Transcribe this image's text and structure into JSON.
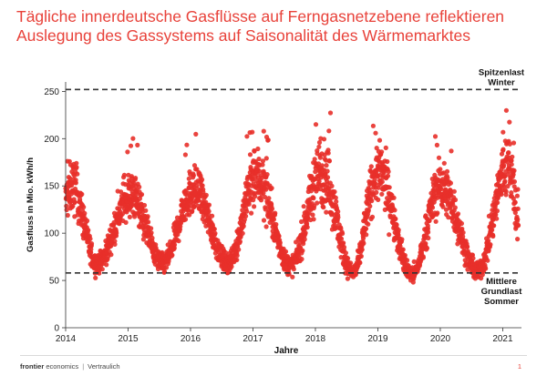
{
  "title_line1": "Tägliche innerdeutsche Gasflüsse auf Ferngasnetzebene reflektieren",
  "title_line2": "Auslegung des Gassystems auf Saisonalität des Wärmemarktes",
  "footer": {
    "brand_bold": "frontier",
    "brand_rest": " economics",
    "separator": "|",
    "confidentiality": "Vertraulich",
    "page_number": "1"
  },
  "chart_data": {
    "type": "scatter",
    "xlabel": "Jahre",
    "ylabel": "Gasfluss in Mio. kWh/h",
    "xlim": [
      2014.0,
      2021.3
    ],
    "ylim": [
      0,
      260
    ],
    "xticks": [
      2014,
      2015,
      2016,
      2017,
      2018,
      2019,
      2020,
      2021
    ],
    "xtick_labels": [
      "2014",
      "2015",
      "2016",
      "2017",
      "2018",
      "2019",
      "2020",
      "2021"
    ],
    "yticks": [
      0,
      50,
      100,
      150,
      200,
      250
    ],
    "ytick_labels": [
      "0",
      "50",
      "100",
      "150",
      "200",
      "250"
    ],
    "point_color": "#e8302a",
    "reference_lines": [
      {
        "y": 252,
        "label_lines": [
          "Spitzenlast",
          "Winter"
        ]
      },
      {
        "y": 58,
        "label_lines": [
          "Mittlere",
          "Grundlast",
          "Sommer"
        ]
      }
    ],
    "series_profile": {
      "description_values": "approximate seasonal envelope of daily values (winter peak / summer trough)",
      "x": [
        2014.0,
        2014.1,
        2014.5,
        2015.05,
        2015.55,
        2016.05,
        2016.6,
        2017.05,
        2017.6,
        2018.1,
        2018.6,
        2019.0,
        2019.55,
        2020.0,
        2020.6,
        2021.1,
        2021.25
      ],
      "y_center": [
        135,
        150,
        68,
        140,
        68,
        145,
        68,
        160,
        66,
        165,
        58,
        165,
        56,
        150,
        60,
        175,
        115
      ],
      "y_spread": [
        22,
        25,
        9,
        22,
        9,
        22,
        9,
        28,
        9,
        32,
        8,
        28,
        8,
        24,
        9,
        32,
        25
      ]
    }
  }
}
